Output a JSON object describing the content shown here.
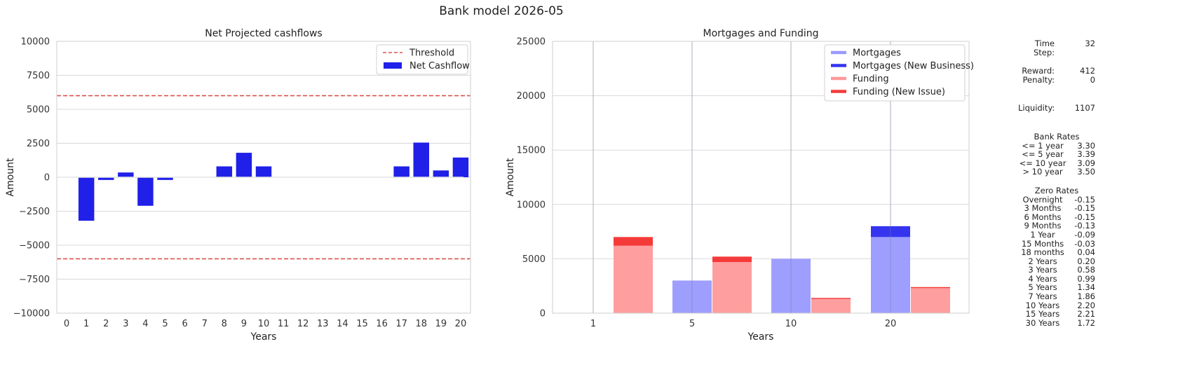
{
  "suptitle": "Bank model 2026-05",
  "colors": {
    "cash": "#2020e8",
    "threshold": "#d9534f",
    "mort": "#9999ff",
    "mortNew": "#3535f0",
    "fund": "#ff9999",
    "fundNew": "#f53a3a"
  },
  "chart_data": [
    {
      "type": "bar",
      "title": "Net Projected cashflows",
      "xlabel": "Years",
      "ylabel": "Amount",
      "ylim": [
        -10000,
        10000
      ],
      "yticks": [
        "−10000",
        "−7500",
        "−5000",
        "−2500",
        "0",
        "2500",
        "5000",
        "7500",
        "10000"
      ],
      "ytick_values": [
        -10000,
        -7500,
        -5000,
        -2500,
        0,
        2500,
        5000,
        7500,
        10000
      ],
      "categories": [
        "0",
        "1",
        "2",
        "3",
        "4",
        "5",
        "6",
        "7",
        "8",
        "9",
        "10",
        "11",
        "12",
        "13",
        "14",
        "15",
        "16",
        "17",
        "18",
        "19",
        "20"
      ],
      "values": [
        0,
        -3200,
        -200,
        350,
        -2100,
        -200,
        0,
        0,
        800,
        1800,
        800,
        0,
        0,
        0,
        0,
        0,
        0,
        800,
        2550,
        500,
        1450
      ],
      "threshold": 6000,
      "legend": [
        "Threshold",
        "Net Cashflow"
      ],
      "legend_position": "top-right",
      "grid": "horizontal"
    },
    {
      "type": "bar",
      "title": "Mortgages and Funding",
      "xlabel": "Years",
      "ylabel": "Amount",
      "ylim": [
        0,
        25000
      ],
      "yticks": [
        "0",
        "5000",
        "10000",
        "15000",
        "20000",
        "25000"
      ],
      "ytick_values": [
        0,
        5000,
        10000,
        15000,
        20000,
        25000
      ],
      "categories": [
        "1",
        "5",
        "10",
        "20"
      ],
      "series": [
        {
          "name": "Mortgages",
          "values": [
            0,
            3000,
            5000,
            7000
          ]
        },
        {
          "name": "Mortgages (New Business)",
          "values": [
            0,
            0,
            0,
            1000
          ]
        },
        {
          "name": "Funding",
          "values": [
            6200,
            4700,
            1300,
            2300
          ]
        },
        {
          "name": "Funding (New Issue)",
          "values": [
            800,
            500,
            100,
            100
          ]
        }
      ],
      "legend_position": "top-right",
      "grid": "both"
    }
  ],
  "side": {
    "time_step_label": "Time Step:",
    "time_step": "32",
    "reward_label": "Reward:",
    "reward": "412",
    "penalty_label": "Penalty:",
    "penalty": "0",
    "liquidity_label": "Liquidity:",
    "liquidity": "1107",
    "bank_rates_title": "Bank Rates",
    "bank_rates": [
      {
        "label": "<= 1 year",
        "value": "3.30"
      },
      {
        "label": "<= 5 year",
        "value": "3.39"
      },
      {
        "label": "<= 10 year",
        "value": "3.09"
      },
      {
        "label": "> 10 year",
        "value": "3.50"
      }
    ],
    "zero_rates_title": "Zero Rates",
    "zero_rates": [
      {
        "label": "Overnight",
        "value": "-0.15"
      },
      {
        "label": "3 Months",
        "value": "-0.15"
      },
      {
        "label": "6 Months",
        "value": "-0.15"
      },
      {
        "label": "9 Months",
        "value": "-0.13"
      },
      {
        "label": "1 Year",
        "value": "-0.09"
      },
      {
        "label": "15 Months",
        "value": "-0.03"
      },
      {
        "label": "18 months",
        "value": "0.04"
      },
      {
        "label": "2 Years",
        "value": "0.20"
      },
      {
        "label": "3 Years",
        "value": "0.58"
      },
      {
        "label": "4 Years",
        "value": "0.99"
      },
      {
        "label": "5 Years",
        "value": "1.34"
      },
      {
        "label": "7 Years",
        "value": "1.86"
      },
      {
        "label": "10 Years",
        "value": "2.20"
      },
      {
        "label": "15 Years",
        "value": "2.21"
      },
      {
        "label": "30 Years",
        "value": "1.72"
      }
    ]
  }
}
